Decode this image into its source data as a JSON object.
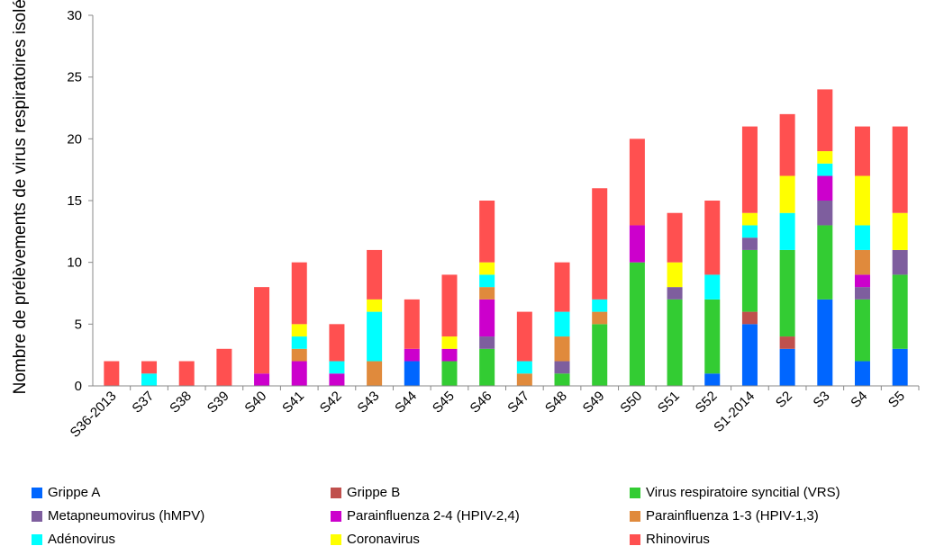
{
  "chart_data": {
    "type": "bar",
    "stacked": true,
    "ylabel": "Nombre de prélèvements de virus respiratoires isolés",
    "ylim": [
      0,
      30
    ],
    "yticks": [
      0,
      5,
      10,
      15,
      20,
      25,
      30
    ],
    "categories": [
      "S36-2013",
      "S37",
      "S38",
      "S39",
      "S40",
      "S41",
      "S42",
      "S43",
      "S44",
      "S45",
      "S46",
      "S47",
      "S48",
      "S49",
      "S50",
      "S51",
      "S52",
      "S1-2014",
      "S2",
      "S3",
      "S4",
      "S5"
    ],
    "series": [
      {
        "name": "Grippe A",
        "color": "#0066FF",
        "values": [
          0,
          0,
          0,
          0,
          0,
          0,
          0,
          0,
          2,
          0,
          0,
          0,
          0,
          0,
          0,
          0,
          1,
          5,
          3,
          7,
          2,
          3
        ]
      },
      {
        "name": "Grippe B",
        "color": "#C0504D",
        "values": [
          0,
          0,
          0,
          0,
          0,
          0,
          0,
          0,
          0,
          0,
          0,
          0,
          0,
          0,
          0,
          0,
          0,
          1,
          1,
          0,
          0,
          0
        ]
      },
      {
        "name": "Virus respiratoire syncitial (VRS)",
        "color": "#33CC33",
        "values": [
          0,
          0,
          0,
          0,
          0,
          0,
          0,
          0,
          0,
          2,
          3,
          0,
          1,
          5,
          10,
          7,
          6,
          5,
          7,
          6,
          5,
          6
        ]
      },
      {
        "name": "Metapneumovirus (hMPV)",
        "color": "#7E5E9E",
        "values": [
          0,
          0,
          0,
          0,
          0,
          0,
          0,
          0,
          0,
          0,
          1,
          0,
          1,
          0,
          0,
          1,
          0,
          1,
          0,
          2,
          1,
          2
        ]
      },
      {
        "name": "Parainfluenza 2-4 (HPIV-2,4)",
        "color": "#CC00CC",
        "values": [
          0,
          0,
          0,
          0,
          1,
          2,
          1,
          0,
          1,
          1,
          3,
          0,
          0,
          0,
          3,
          0,
          0,
          0,
          0,
          2,
          1,
          0
        ]
      },
      {
        "name": "Parainfluenza 1-3 (HPIV-1,3)",
        "color": "#E08A3C",
        "values": [
          0,
          0,
          0,
          0,
          0,
          1,
          0,
          2,
          0,
          0,
          1,
          1,
          2,
          1,
          0,
          0,
          0,
          0,
          0,
          0,
          2,
          0
        ]
      },
      {
        "name": "Adénovirus",
        "color": "#00FFFF",
        "values": [
          0,
          1,
          0,
          0,
          0,
          1,
          1,
          4,
          0,
          0,
          1,
          1,
          2,
          1,
          0,
          0,
          2,
          1,
          3,
          1,
          2,
          0
        ]
      },
      {
        "name": "Coronavirus",
        "color": "#FFFF00",
        "values": [
          0,
          0,
          0,
          0,
          0,
          1,
          0,
          1,
          0,
          1,
          1,
          0,
          0,
          0,
          0,
          2,
          0,
          1,
          3,
          1,
          4,
          3
        ]
      },
      {
        "name": "Rhinovirus",
        "color": "#FF5050",
        "values": [
          2,
          1,
          2,
          3,
          7,
          5,
          3,
          4,
          4,
          5,
          5,
          4,
          4,
          9,
          7,
          4,
          6,
          7,
          5,
          5,
          4,
          7
        ]
      }
    ]
  }
}
